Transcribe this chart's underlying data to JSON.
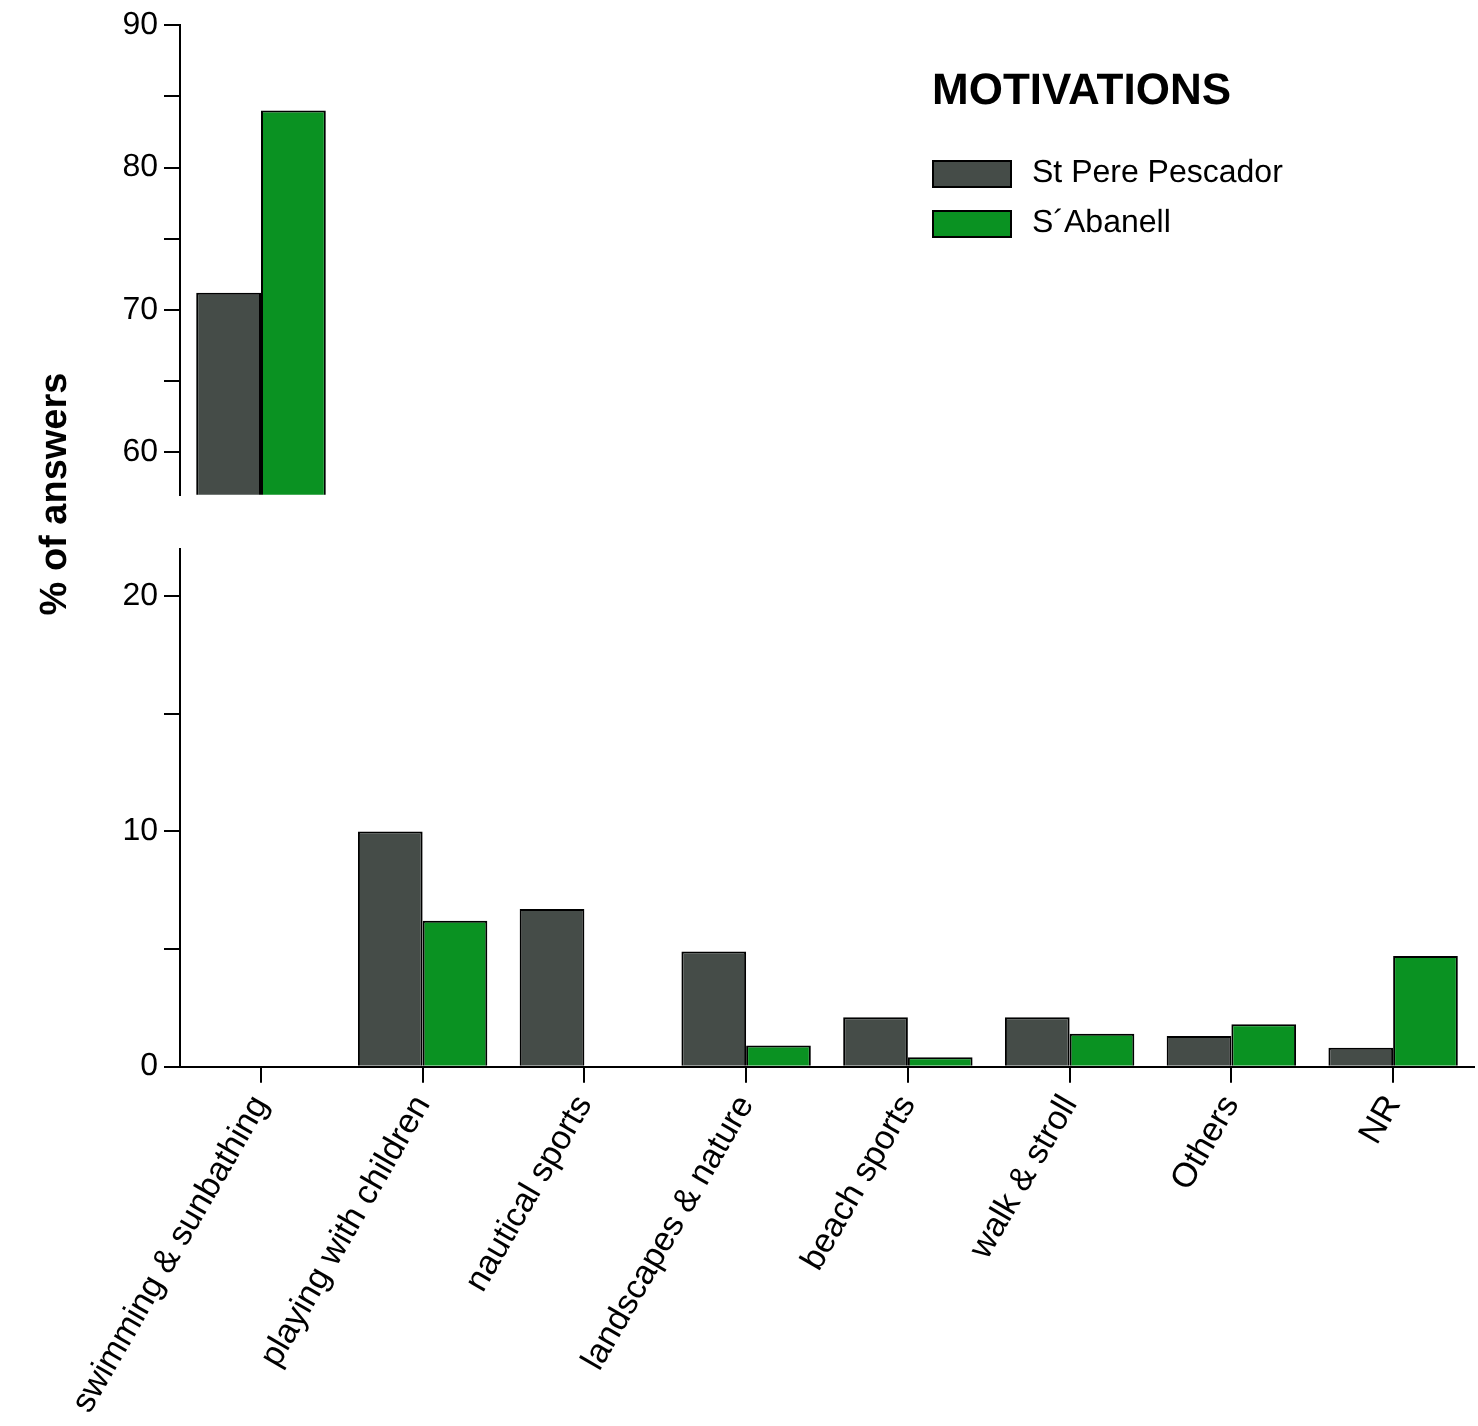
{
  "chart_data": [
    {
      "type": "bar",
      "legend_title": "MOTIVATIONS",
      "ylabel": "% of answers",
      "legend": "top right",
      "tick_labels": "y",
      "categories": [
        null
      ],
      "series": [
        {
          "name": "St Pere Pescador",
          "color": "#454c48",
          "values": [
            71.2
          ]
        },
        {
          "name": "S´Abanell",
          "color": "#0a9222",
          "values": [
            84
          ]
        }
      ],
      "ylim": [
        57,
        90
      ],
      "yticks": [
        60,
        {
          "value": 65,
          "label": null
        },
        70,
        {
          "value": 75,
          "label": null
        },
        80,
        {
          "value": 85,
          "label": null
        },
        90
      ]
    },
    {
      "type": "bar",
      "categories": [
        "swimming & sunbathing",
        "playing with children",
        "nautical sports",
        "landscapes & nature",
        "beach sports",
        "walk & stroll",
        "Others",
        "NR"
      ],
      "series": [
        {
          "color": "#454c48",
          "values": [
            null,
            10,
            6.7,
            4.9,
            2.1,
            2.1,
            1.3,
            0.8
          ]
        },
        {
          "color": "#0a9222",
          "values": [
            null,
            6.2,
            0,
            0.9,
            0.4,
            1.4,
            1.8,
            4.7
          ]
        }
      ],
      "ylim": [
        0,
        22
      ],
      "yticks": [
        0,
        {
          "value": 5,
          "label": null
        },
        10,
        {
          "value": 15,
          "label": null
        },
        20
      ]
    }
  ]
}
